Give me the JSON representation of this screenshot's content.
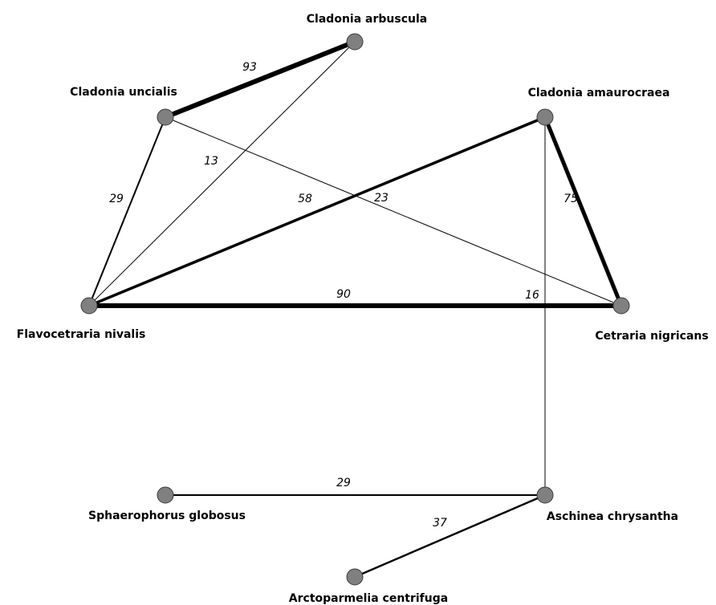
{
  "nodes": [
    {
      "id": "arbuscula",
      "label": "Cladonia arbuscula"
    },
    {
      "id": "uncialis",
      "label": "Cladonia uncialis"
    },
    {
      "id": "amaurocraea",
      "label": "Cladonia amaurocraea"
    },
    {
      "id": "flavocetraria",
      "label": "Flavocetraria nivalis"
    },
    {
      "id": "cetraria",
      "label": "Cetraria nigricans"
    },
    {
      "id": "sphaerophorus",
      "label": "Sphaerophorus globosus"
    },
    {
      "id": "aschinea",
      "label": "Aschinea chrysantha"
    },
    {
      "id": "arctoparmelia",
      "label": "Arctoparmelia centrifuga"
    }
  ],
  "edges": [
    {
      "source": "uncialis",
      "target": "arbuscula",
      "weight": 93
    },
    {
      "source": "flavocetraria",
      "target": "arbuscula",
      "weight": 13
    },
    {
      "source": "uncialis",
      "target": "flavocetraria",
      "weight": 29
    },
    {
      "source": "uncialis",
      "target": "cetraria",
      "weight": 23
    },
    {
      "source": "flavocetraria",
      "target": "amaurocraea",
      "weight": 58
    },
    {
      "source": "amaurocraea",
      "target": "cetraria",
      "weight": 75
    },
    {
      "source": "flavocetraria",
      "target": "cetraria",
      "weight": 90
    },
    {
      "source": "amaurocraea",
      "target": "aschinea",
      "weight": 16
    },
    {
      "source": "sphaerophorus",
      "target": "aschinea",
      "weight": 29
    },
    {
      "source": "aschinea",
      "target": "arctoparmelia",
      "weight": 37
    }
  ],
  "colors": {
    "node_fill": "#808080",
    "node_stroke": "#3a3a3a",
    "edge": "#000000",
    "background": "#ffffff"
  }
}
